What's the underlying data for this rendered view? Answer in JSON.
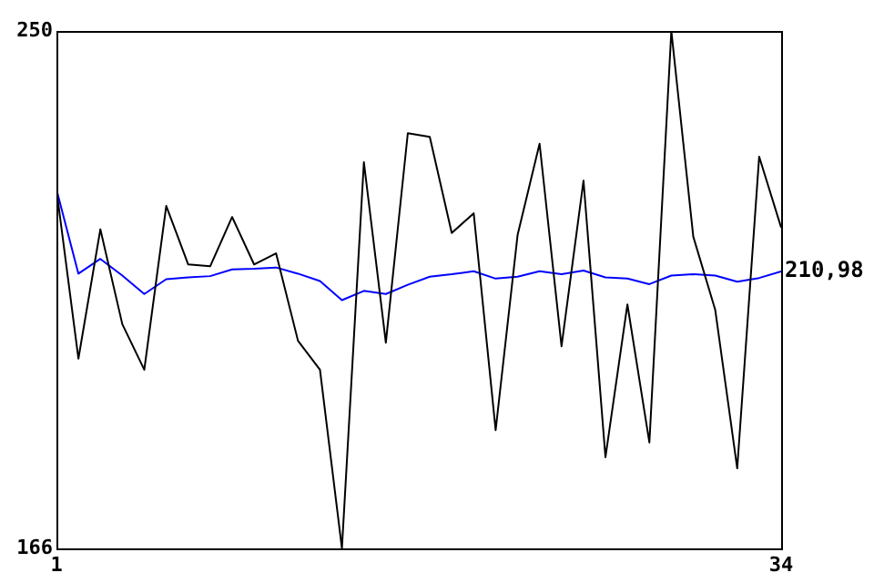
{
  "chart_data": {
    "type": "line",
    "x": [
      1,
      2,
      3,
      4,
      5,
      6,
      7,
      8,
      9,
      10,
      11,
      12,
      13,
      14,
      15,
      16,
      17,
      18,
      19,
      20,
      21,
      22,
      23,
      24,
      25,
      26,
      27,
      28,
      29,
      30,
      31,
      32,
      33,
      34
    ],
    "series": [
      {
        "color": "#000000",
        "values": [
          224.3,
          196.8,
          217.8,
          202.4,
          195.0,
          221.6,
          212.1,
          211.8,
          219.8,
          212.1,
          213.9,
          199.7,
          195.0,
          166,
          228.7,
          199.4,
          233.4,
          232.8,
          217.2,
          220.4,
          185.2,
          216.9,
          231.7,
          198.8,
          225.7,
          180.8,
          205.6,
          183.2,
          250,
          216.6,
          204.7,
          179.0,
          229.6,
          218.1
        ]
      },
      {
        "color": "#0000ff",
        "values": [
          224.3,
          210.6,
          213.0,
          210.3,
          207.3,
          209.7,
          210.0,
          210.2,
          211.3,
          211.4,
          211.6,
          210.6,
          209.4,
          206.3,
          207.8,
          207.3,
          208.8,
          210.1,
          210.5,
          211.0,
          209.8,
          210.1,
          211.0,
          210.5,
          211.1,
          210.0,
          209.8,
          208.9,
          210.3,
          210.5,
          210.3,
          209.3,
          209.9,
          210.98
        ],
        "value_labels": [
          null,
          null,
          null,
          null,
          null,
          null,
          null,
          null,
          null,
          null,
          null,
          null,
          null,
          null,
          null,
          null,
          null,
          null,
          null,
          null,
          null,
          null,
          null,
          null,
          null,
          null,
          null,
          null,
          null,
          null,
          null,
          null,
          null,
          "210,98"
        ]
      }
    ],
    "xlim": [
      1,
      34
    ],
    "xticks": [
      1,
      34
    ],
    "ylim": [
      166,
      250
    ],
    "yticks": [
      166,
      250
    ],
    "grid": false,
    "legend": false,
    "marker": "none",
    "line_style": "solid"
  }
}
